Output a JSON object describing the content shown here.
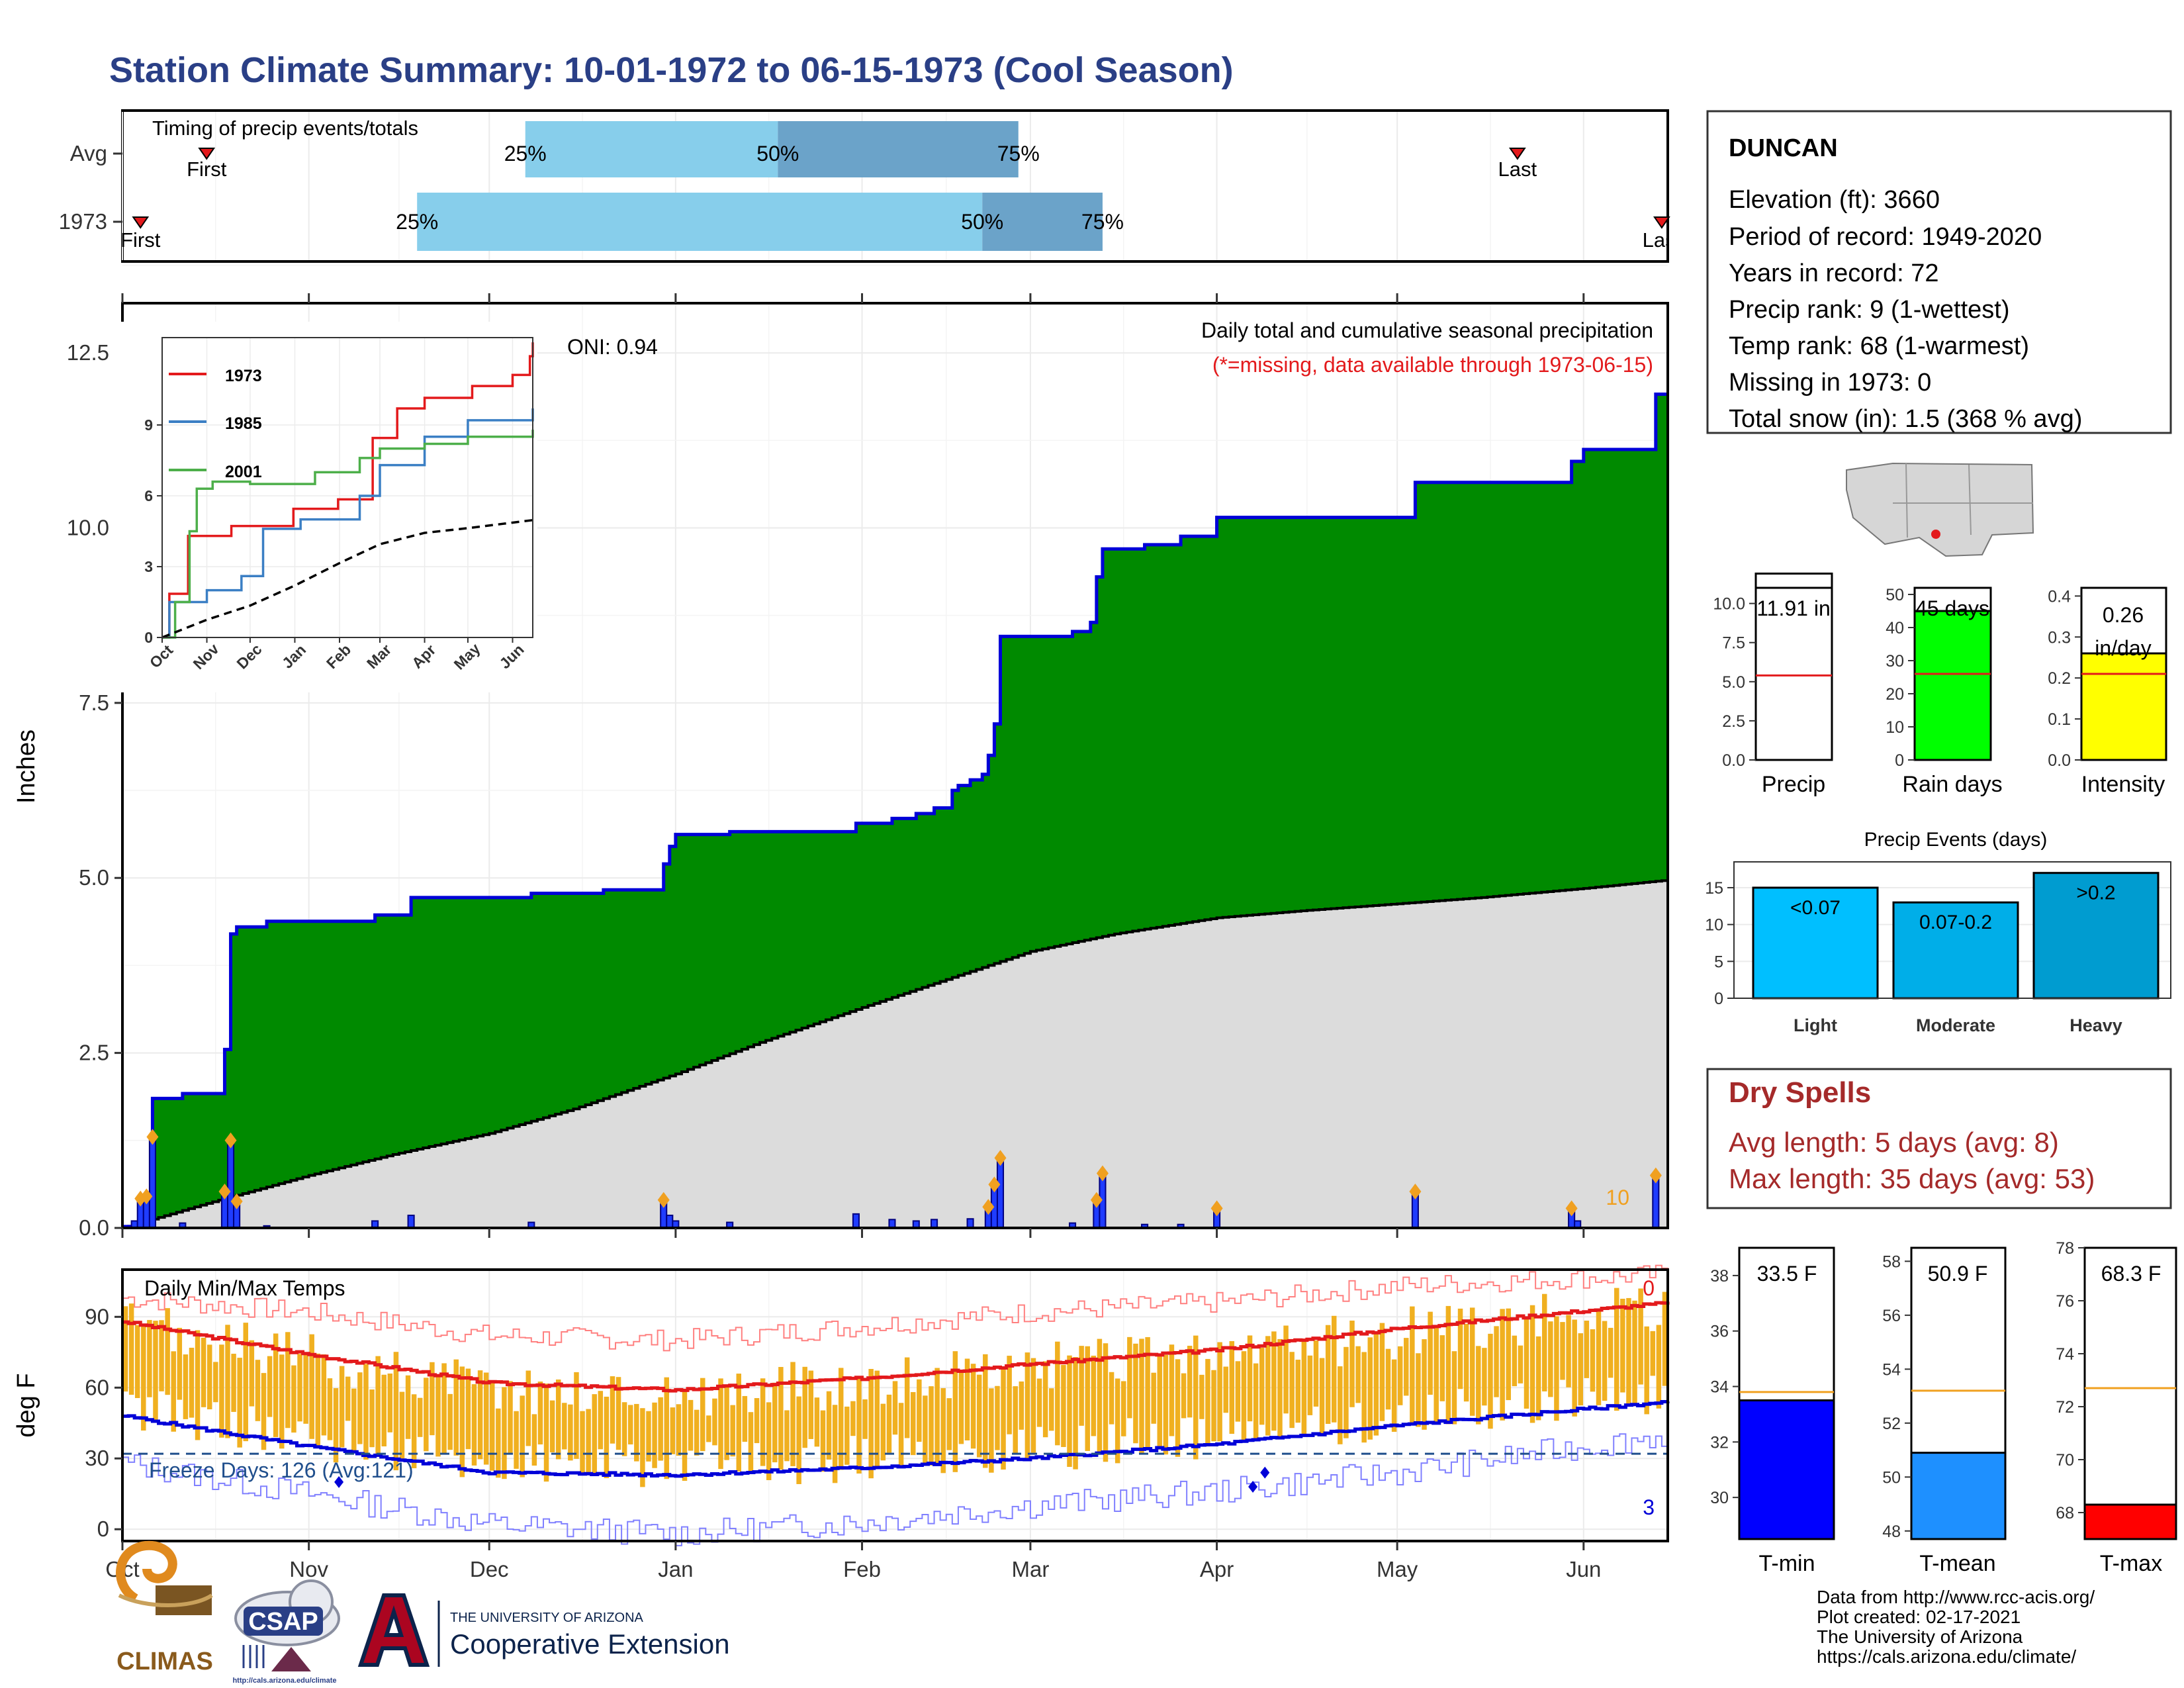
{
  "title": "Station Climate Summary: 10-01-1972 to 06-15-1973 (Cool Season)",
  "colors": {
    "title": "#2a3f86",
    "green_fill": "#008a00",
    "blue_line": "#0000d8",
    "gray_fill": "#dcdcdc",
    "orange": "#f0a020",
    "red": "#e31a1c",
    "light_blue": "#87ceeb",
    "mid_blue": "#6ba3c9",
    "temp_bar": "#f0b020",
    "dry_red": "#a52a2a"
  },
  "timing": {
    "label": "Timing of precip events/totals",
    "rows": [
      {
        "name": "Avg",
        "first_label": "First",
        "first_date": "1972-10-15",
        "last_label": "Last",
        "last_date": "1973-05-21",
        "q25": {
          "label": "25%",
          "date": "1972-12-07"
        },
        "q50": {
          "label": "50%",
          "date": "1973-01-18"
        },
        "q75": {
          "label": "75%",
          "date": "1973-02-27"
        }
      },
      {
        "name": "1973",
        "first_label": "First",
        "first_date": "1972-10-04",
        "last_label": "Last",
        "last_date": "1973-06-14",
        "q25": {
          "label": "25%",
          "date": "1972-11-19"
        },
        "q50": {
          "label": "50%",
          "date": "1973-02-21"
        },
        "q75": {
          "label": "75%",
          "date": "1973-03-13"
        }
      }
    ]
  },
  "axis": {
    "months": [
      "Oct",
      "Nov",
      "Dec",
      "Jan",
      "Feb",
      "Mar",
      "Apr",
      "May",
      "Jun"
    ],
    "month_dates": [
      "1972-10-01",
      "1972-11-01",
      "1972-12-01",
      "1973-01-01",
      "1973-02-01",
      "1973-03-01",
      "1973-04-01",
      "1973-05-01",
      "1973-06-01"
    ],
    "start_date": "1972-10-01",
    "end_date": "1973-06-15"
  },
  "precip_panel": {
    "ylabel": "Inches",
    "header": "Daily total and cumulative seasonal precipitation",
    "subheader": "(*=missing, data available through 1973-06-15)",
    "oni": "ONI: 0.94",
    "count_label": "10",
    "yticks": [
      "0.0",
      "2.5",
      "5.0",
      "7.5",
      "10.0",
      "12.5"
    ]
  },
  "inset": {
    "yticks": [
      "0",
      "3",
      "6",
      "9"
    ],
    "months": [
      "Oct",
      "Nov",
      "Dec",
      "Jan",
      "Feb",
      "Mar",
      "Apr",
      "May",
      "Jun"
    ],
    "legend": [
      "1973",
      "1985",
      "2001"
    ]
  },
  "temp_panel": {
    "ylabel": "deg F",
    "header": "Daily Min/Max Temps",
    "freeze": "Freeze Days: 126 (Avg:121)",
    "count_hot": "0",
    "count_cold": "3",
    "yticks": [
      "0",
      "30",
      "60",
      "90"
    ]
  },
  "station": {
    "name": "DUNCAN",
    "lines": [
      "Elevation (ft): 3660",
      "Period of record: 1949-2020",
      "Years in record: 72",
      "Precip rank: 9 (1-wettest)",
      "Temp rank: 68 (1-warmest)",
      "Missing in 1973: 0",
      "Total snow (in): 1.5 (368 % avg)"
    ]
  },
  "mini_bars": [
    {
      "label": "Precip",
      "value_label": "11.91 in",
      "yticks": [
        "0.0",
        "2.5",
        "5.0",
        "7.5",
        "10.0"
      ]
    },
    {
      "label": "Rain days",
      "value_label": "45 days",
      "yticks": [
        "0",
        "10",
        "20",
        "30",
        "40",
        "50"
      ]
    },
    {
      "label": "Intensity",
      "value_label": "0.26 in/day",
      "value_line1": "0.26",
      "value_line2": "in/day",
      "yticks": [
        "0.0",
        "0.1",
        "0.2",
        "0.3",
        "0.4"
      ]
    }
  ],
  "events": {
    "title": "Precip Events (days)",
    "yticks": [
      "0",
      "5",
      "10",
      "15"
    ],
    "categories": [
      "Light",
      "Moderate",
      "Heavy"
    ],
    "labels": [
      "<0.07",
      "0.07-0.2",
      ">0.2"
    ]
  },
  "dry": {
    "title": "Dry Spells",
    "avg": "Avg length: 5 days (avg: 8)",
    "max": "Max length: 35 days (avg: 53)"
  },
  "temp_bars": [
    {
      "label": "T-min",
      "value_label": "33.5 F",
      "yticks": [
        "30",
        "32",
        "34",
        "36",
        "38"
      ]
    },
    {
      "label": "T-mean",
      "value_label": "50.9 F",
      "yticks": [
        "48",
        "50",
        "52",
        "54",
        "56",
        "58"
      ]
    },
    {
      "label": "T-max",
      "value_label": "68.3 F",
      "yticks": [
        "68",
        "70",
        "72",
        "74",
        "76",
        "78"
      ]
    }
  ],
  "footer": {
    "lines": [
      "Data from http://www.rcc-acis.org/",
      "Plot created: 02-17-2021",
      "The University of Arizona",
      "https://cals.arizona.edu/climate/"
    ],
    "climas": "CLIMAS",
    "csap": "CSAP",
    "csap_url": "http://cals.arizona.edu/climate",
    "ua_small": "THE UNIVERSITY OF ARIZONA",
    "ua_big": "Cooperative Extension"
  },
  "chart_data": [
    {
      "type": "area",
      "title": "Daily total and cumulative seasonal precipitation",
      "ylabel": "Inches",
      "ylim": [
        0,
        12.5
      ],
      "x_type": "date",
      "cumulative_1973": [
        [
          "1972-10-01",
          0.02
        ],
        [
          "1972-10-05",
          0.45
        ],
        [
          "1972-10-06",
          1.85
        ],
        [
          "1972-10-11",
          1.92
        ],
        [
          "1972-10-18",
          2.55
        ],
        [
          "1972-10-19",
          4.2
        ],
        [
          "1972-10-20",
          4.3
        ],
        [
          "1972-10-25",
          4.38
        ],
        [
          "1972-11-12",
          4.47
        ],
        [
          "1972-11-18",
          4.72
        ],
        [
          "1972-12-08",
          4.78
        ],
        [
          "1972-12-20",
          4.83
        ],
        [
          "1972-12-30",
          5.2
        ],
        [
          "1972-12-31",
          5.45
        ],
        [
          "1973-01-01",
          5.62
        ],
        [
          "1973-01-10",
          5.66
        ],
        [
          "1973-01-31",
          5.78
        ],
        [
          "1973-02-06",
          5.85
        ],
        [
          "1973-02-10",
          5.92
        ],
        [
          "1973-02-13",
          6.0
        ],
        [
          "1973-02-16",
          6.25
        ],
        [
          "1973-02-17",
          6.32
        ],
        [
          "1973-02-19",
          6.4
        ],
        [
          "1973-02-21",
          6.48
        ],
        [
          "1973-02-22",
          6.75
        ],
        [
          "1973-02-23",
          7.2
        ],
        [
          "1973-02-24",
          8.45
        ],
        [
          "1973-03-08",
          8.52
        ],
        [
          "1973-03-11",
          8.65
        ],
        [
          "1973-03-12",
          9.3
        ],
        [
          "1973-03-13",
          9.7
        ],
        [
          "1973-03-20",
          9.76
        ],
        [
          "1973-03-26",
          9.88
        ],
        [
          "1973-04-01",
          10.15
        ],
        [
          "1973-05-04",
          10.65
        ],
        [
          "1973-05-30",
          10.95
        ],
        [
          "1973-06-01",
          11.12
        ],
        [
          "1973-06-13",
          11.91
        ]
      ],
      "average_cumulative": [
        [
          "1972-10-01",
          0.0
        ],
        [
          "1972-10-15",
          0.35
        ],
        [
          "1972-11-01",
          0.75
        ],
        [
          "1972-11-15",
          1.05
        ],
        [
          "1972-12-01",
          1.35
        ],
        [
          "1972-12-15",
          1.7
        ],
        [
          "1973-01-01",
          2.2
        ],
        [
          "1973-01-15",
          2.65
        ],
        [
          "1973-02-01",
          3.15
        ],
        [
          "1973-02-15",
          3.55
        ],
        [
          "1973-03-01",
          3.95
        ],
        [
          "1973-03-15",
          4.2
        ],
        [
          "1973-04-01",
          4.43
        ],
        [
          "1973-04-15",
          4.53
        ],
        [
          "1973-05-01",
          4.63
        ],
        [
          "1973-05-15",
          4.72
        ],
        [
          "1973-06-01",
          4.85
        ],
        [
          "1973-06-15",
          4.97
        ]
      ],
      "daily_precip": [
        [
          "1972-10-03",
          0.1
        ],
        [
          "1972-10-04",
          0.42
        ],
        [
          "1972-10-05",
          0.45
        ],
        [
          "1972-10-06",
          1.3
        ],
        [
          "1972-10-11",
          0.07
        ],
        [
          "1972-10-18",
          0.52
        ],
        [
          "1972-10-19",
          1.25
        ],
        [
          "1972-10-20",
          0.38
        ],
        [
          "1972-10-25",
          0.03
        ],
        [
          "1972-11-12",
          0.1
        ],
        [
          "1972-11-18",
          0.18
        ],
        [
          "1972-12-08",
          0.08
        ],
        [
          "1972-12-30",
          0.4
        ],
        [
          "1972-12-31",
          0.18
        ],
        [
          "1973-01-01",
          0.1
        ],
        [
          "1973-01-10",
          0.08
        ],
        [
          "1973-01-31",
          0.2
        ],
        [
          "1973-02-06",
          0.12
        ],
        [
          "1973-02-10",
          0.1
        ],
        [
          "1973-02-13",
          0.12
        ],
        [
          "1973-02-19",
          0.13
        ],
        [
          "1973-02-22",
          0.3
        ],
        [
          "1973-02-23",
          0.62
        ],
        [
          "1973-02-24",
          1.0
        ],
        [
          "1973-03-08",
          0.07
        ],
        [
          "1973-03-12",
          0.4
        ],
        [
          "1973-03-13",
          0.78
        ],
        [
          "1973-03-20",
          0.05
        ],
        [
          "1973-03-26",
          0.05
        ],
        [
          "1973-04-01",
          0.28
        ],
        [
          "1973-05-04",
          0.52
        ],
        [
          "1973-05-30",
          0.28
        ],
        [
          "1973-05-31",
          0.1
        ],
        [
          "1973-06-13",
          0.75
        ]
      ]
    },
    {
      "type": "line",
      "title": "",
      "ylim": [
        0,
        12
      ],
      "x_type": "date",
      "series": [
        {
          "name": "1973",
          "values": [
            [
              "1972-10-01",
              0.0
            ],
            [
              "1972-10-06",
              1.85
            ],
            [
              "1972-10-19",
              4.3
            ],
            [
              "1972-11-18",
              4.72
            ],
            [
              "1972-12-31",
              5.45
            ],
            [
              "1973-01-31",
              5.85
            ],
            [
              "1973-02-24",
              8.45
            ],
            [
              "1973-03-13",
              9.7
            ],
            [
              "1973-04-01",
              10.15
            ],
            [
              "1973-05-04",
              10.65
            ],
            [
              "1973-06-01",
              11.12
            ],
            [
              "1973-06-13",
              11.91
            ],
            [
              "1973-06-15",
              12.5
            ]
          ]
        },
        {
          "name": "1985",
          "values": [
            [
              "1972-10-01",
              0.0
            ],
            [
              "1972-10-06",
              1.5
            ],
            [
              "1972-11-01",
              2.0
            ],
            [
              "1972-11-25",
              2.6
            ],
            [
              "1972-12-10",
              4.6
            ],
            [
              "1973-01-05",
              5.0
            ],
            [
              "1973-02-15",
              6.0
            ],
            [
              "1973-03-01",
              7.3
            ],
            [
              "1973-04-01",
              8.5
            ],
            [
              "1973-05-01",
              9.2
            ],
            [
              "1973-06-15",
              9.7
            ]
          ]
        },
        {
          "name": "2001",
          "values": [
            [
              "1972-10-01",
              0.0
            ],
            [
              "1972-10-10",
              1.5
            ],
            [
              "1972-10-20",
              4.5
            ],
            [
              "1972-10-25",
              6.3
            ],
            [
              "1972-11-05",
              6.6
            ],
            [
              "1972-12-01",
              6.5
            ],
            [
              "1973-01-15",
              7.0
            ],
            [
              "1973-02-15",
              7.6
            ],
            [
              "1973-03-01",
              8.0
            ],
            [
              "1973-04-01",
              8.2
            ],
            [
              "1973-05-01",
              8.5
            ],
            [
              "1973-06-15",
              8.8
            ]
          ]
        },
        {
          "name": "",
          "values": [
            [
              "1972-10-01",
              0.0
            ],
            [
              "1972-11-01",
              0.75
            ],
            [
              "1972-12-01",
              1.35
            ],
            [
              "1973-01-01",
              2.2
            ],
            [
              "1973-02-01",
              3.15
            ],
            [
              "1973-03-01",
              3.95
            ],
            [
              "1973-04-01",
              4.43
            ],
            [
              "1973-05-01",
              4.63
            ],
            [
              "1973-06-15",
              4.97
            ]
          ]
        }
      ]
    },
    {
      "type": "bar",
      "title": "Daily Min/Max Temps",
      "ylabel": "deg F",
      "ylim": [
        -5,
        110
      ],
      "freeze_threshold": 32,
      "avg_max": [
        [
          "1972-10-01",
          88
        ],
        [
          "1972-11-01",
          74
        ],
        [
          "1972-12-01",
          62
        ],
        [
          "1973-01-01",
          59
        ],
        [
          "1973-02-01",
          64
        ],
        [
          "1973-03-01",
          70
        ],
        [
          "1973-04-01",
          76
        ],
        [
          "1973-05-01",
          85
        ],
        [
          "1973-06-15",
          96
        ]
      ],
      "avg_min": [
        [
          "1972-10-01",
          48
        ],
        [
          "1972-11-01",
          35
        ],
        [
          "1972-12-01",
          24
        ],
        [
          "1973-01-01",
          23
        ],
        [
          "1973-02-01",
          26
        ],
        [
          "1973-03-01",
          30
        ],
        [
          "1973-04-01",
          36
        ],
        [
          "1973-05-01",
          44
        ],
        [
          "1973-06-15",
          54
        ]
      ],
      "record_max": [
        [
          "1972-10-01",
          98
        ],
        [
          "1972-11-01",
          92
        ],
        [
          "1972-12-01",
          82
        ],
        [
          "1973-01-01",
          80
        ],
        [
          "1973-02-01",
          86
        ],
        [
          "1973-03-01",
          92
        ],
        [
          "1973-04-01",
          96
        ],
        [
          "1973-05-01",
          103
        ],
        [
          "1973-06-15",
          108
        ]
      ],
      "record_min": [
        [
          "1972-10-01",
          28
        ],
        [
          "1972-11-01",
          15
        ],
        [
          "1972-12-01",
          2
        ],
        [
          "1973-01-01",
          -2
        ],
        [
          "1973-02-01",
          3
        ],
        [
          "1973-03-01",
          10
        ],
        [
          "1973-04-01",
          16
        ],
        [
          "1973-05-01",
          24
        ],
        [
          "1973-06-15",
          40
        ]
      ],
      "record_lows_set": [
        [
          "1972-11-06",
          20
        ],
        [
          "1973-04-07",
          18
        ],
        [
          "1973-04-09",
          24
        ]
      ]
    },
    {
      "type": "bar",
      "categories": [
        "Precip",
        "Rain days",
        "Intensity"
      ],
      "values": [
        11.91,
        45,
        0.26
      ],
      "averages": [
        5.4,
        26,
        0.21
      ],
      "ylims": [
        [
          0,
          11
        ],
        [
          0,
          52
        ],
        [
          0,
          0.42
        ]
      ]
    },
    {
      "type": "bar",
      "title": "Precip Events (days)",
      "categories": [
        "Light",
        "Moderate",
        "Heavy"
      ],
      "values": [
        15,
        13,
        17
      ],
      "ylim": [
        0,
        18.5
      ]
    },
    {
      "type": "bar",
      "categories": [
        "T-min",
        "T-mean",
        "T-max"
      ],
      "values": [
        33.5,
        50.9,
        68.3
      ],
      "averages": [
        33.8,
        53.2,
        72.7
      ],
      "ylims": [
        [
          28.5,
          39
        ],
        [
          47.7,
          58.5
        ],
        [
          67,
          78
        ]
      ]
    }
  ]
}
